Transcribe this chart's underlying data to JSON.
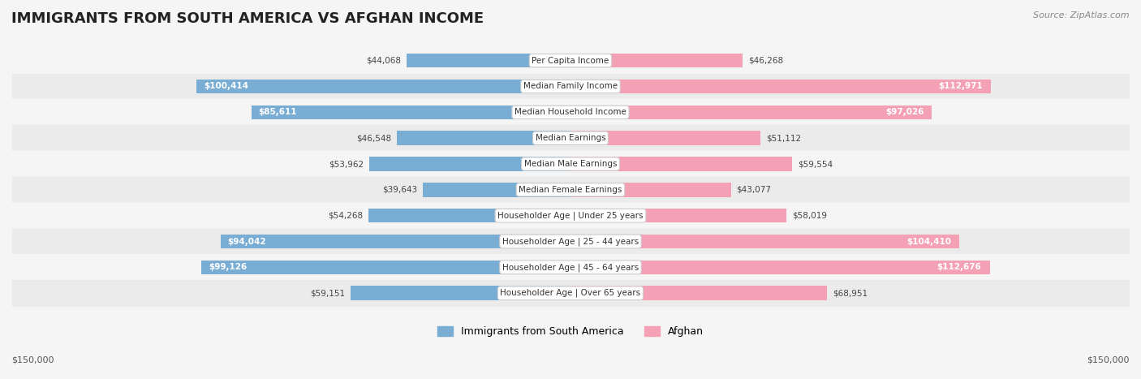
{
  "title": "IMMIGRANTS FROM SOUTH AMERICA VS AFGHAN INCOME",
  "source": "Source: ZipAtlas.com",
  "categories": [
    "Per Capita Income",
    "Median Family Income",
    "Median Household Income",
    "Median Earnings",
    "Median Male Earnings",
    "Median Female Earnings",
    "Householder Age | Under 25 years",
    "Householder Age | 25 - 44 years",
    "Householder Age | 45 - 64 years",
    "Householder Age | Over 65 years"
  ],
  "left_values": [
    44068,
    100414,
    85611,
    46548,
    53962,
    39643,
    54268,
    94042,
    99126,
    59151
  ],
  "right_values": [
    46268,
    112971,
    97026,
    51112,
    59554,
    43077,
    58019,
    104410,
    112676,
    68951
  ],
  "left_labels": [
    "$44,068",
    "$100,414",
    "$85,611",
    "$46,548",
    "$53,962",
    "$39,643",
    "$54,268",
    "$94,042",
    "$99,126",
    "$59,151"
  ],
  "right_labels": [
    "$46,268",
    "$112,971",
    "$97,026",
    "$51,112",
    "$59,554",
    "$43,077",
    "$58,019",
    "$104,410",
    "$112,676",
    "$68,951"
  ],
  "max_value": 150000,
  "left_color": "#7aadd4",
  "right_color": "#f4a0b5",
  "left_color_dark": "#5b9cc4",
  "right_color_dark": "#f07090",
  "left_legend": "Immigrants from South America",
  "right_legend": "Afghan",
  "bg_color": "#f5f5f5",
  "row_bg_even": "#ebebeb",
  "row_bg_odd": "#f5f5f5",
  "label_inside_threshold": 70000,
  "axis_label_left": "$150,000",
  "axis_label_right": "$150,000"
}
